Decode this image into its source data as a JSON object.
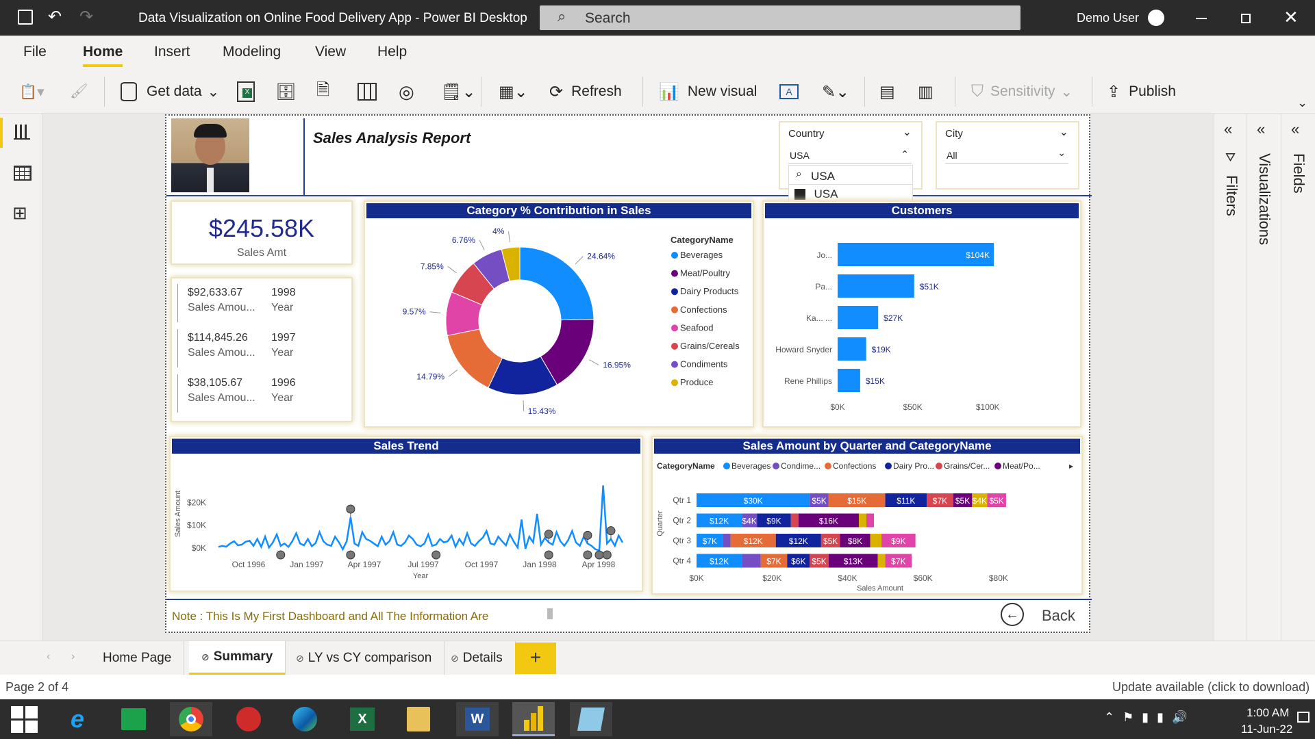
{
  "window": {
    "title": "Data Visualization on Online Food Delivery App - Power BI Desktop",
    "search_placeholder": "Search",
    "user": "Demo User"
  },
  "menu": [
    "File",
    "Home",
    "Insert",
    "Modeling",
    "View",
    "Help"
  ],
  "ribbon": {
    "get_data": "Get data",
    "refresh": "Refresh",
    "new_visual": "New visual",
    "sensitivity": "Sensitivity",
    "publish": "Publish"
  },
  "report": {
    "title": "Sales Analysis Report",
    "kpi": {
      "value": "$245.58K",
      "label": "Sales Amt"
    },
    "yearly": [
      {
        "amount": "$92,633.67",
        "amount_label": "Sales Amou...",
        "year": "1998",
        "year_label": "Year"
      },
      {
        "amount": "$114,845.26",
        "amount_label": "Sales Amou...",
        "year": "1997",
        "year_label": "Year"
      },
      {
        "amount": "$38,105.67",
        "amount_label": "Sales Amou...",
        "year": "1996",
        "year_label": "Year"
      }
    ],
    "country_slicer": {
      "label": "Country",
      "value": "USA",
      "search_value": "USA",
      "option": "USA"
    },
    "city_slicer": {
      "label": "City",
      "value": "All"
    },
    "note": "Note : This Is My First Dashboard and All The Information Are",
    "back": "Back"
  },
  "chart_data": [
    {
      "type": "pie",
      "title": "Category % Contribution in Sales",
      "legend_title": "CategoryName",
      "categories": [
        "Beverages",
        "Meat/Poultry",
        "Dairy Products",
        "Confections",
        "Seafood",
        "Grains/Cereals",
        "Condiments",
        "Produce"
      ],
      "values": [
        24.64,
        16.95,
        15.43,
        14.79,
        9.57,
        7.85,
        6.76,
        4.0
      ],
      "labels": [
        "24.64%",
        "16.95%",
        "15.43%",
        "14.79%",
        "9.57%",
        "7.85%",
        "6.76%",
        "4%"
      ],
      "colors": [
        "#118dff",
        "#6b007b",
        "#12239e",
        "#e66c37",
        "#e044a7",
        "#d64550",
        "#744ec2",
        "#d9b300"
      ]
    },
    {
      "type": "bar",
      "title": "Customers",
      "categories": [
        "Jo...",
        "Pa...",
        "Ka... ...",
        "Howard Snyder",
        "Rene Phillips"
      ],
      "values": [
        104,
        51,
        27,
        19,
        15
      ],
      "labels": [
        "$104K",
        "$51K",
        "$27K",
        "$19K",
        "$15K"
      ],
      "xticks": [
        "$0K",
        "$50K",
        "$100K"
      ],
      "xlim": [
        0,
        125
      ]
    },
    {
      "type": "line",
      "title": "Sales Trend",
      "xlabel": "Year",
      "ylabel": "Sales Amount",
      "xticks": [
        "Oct 1996",
        "Jan 1997",
        "Apr 1997",
        "Jul 1997",
        "Oct 1997",
        "Jan 1998",
        "Apr 1998"
      ],
      "yticks": [
        "$0K",
        "$10K",
        "$20K"
      ],
      "ylim": [
        0,
        30
      ],
      "values": [
        0.5,
        1,
        0.6,
        2,
        3,
        1.2,
        1.5,
        2.8,
        3.2,
        1,
        4,
        0.5,
        5,
        0.2,
        2.5,
        6,
        1,
        2,
        0.5,
        3,
        6.5,
        2,
        1.2,
        4,
        0.8,
        2.2,
        7,
        3,
        1.5,
        1,
        5,
        2.5,
        -0.5,
        3,
        13.5,
        2,
        1,
        7,
        4,
        3.2,
        2,
        0.8,
        5,
        1.5,
        3,
        7,
        1.5,
        1,
        2.5,
        5.5,
        4,
        1.5,
        0.8,
        2,
        6,
        1,
        1.5,
        4,
        2.5,
        3,
        5.5,
        0.6,
        4,
        1.5,
        6.5,
        2,
        1,
        3,
        4.5,
        7.5,
        2,
        1.5,
        5,
        3,
        1.2,
        6,
        2.8,
        0.2,
        12.5,
        -0.3,
        5,
        2.5,
        15,
        1.5,
        4.5,
        2.5,
        1.5,
        7,
        3,
        1,
        3.5,
        7.5,
        2.5,
        1,
        5,
        2,
        1,
        -0.5,
        -1,
        27.5,
        2,
        4,
        1,
        5.5,
        2.5
      ],
      "markers_high": [
        34,
        85,
        95,
        101
      ],
      "markers_low": [
        16,
        34,
        56,
        85,
        95,
        98,
        100
      ]
    },
    {
      "type": "bar",
      "title": "Sales Amount by Quarter and CategoryName",
      "legend_title": "CategoryName",
      "legend": [
        "Beverages",
        "Condime...",
        "Confections",
        "Dairy Pro...",
        "Grains/Cer...",
        "Meat/Po..."
      ],
      "ylabel": "Quarter",
      "xlabel": "Sales Amount",
      "xticks": [
        "$0K",
        "$20K",
        "$40K",
        "$60K",
        "$80K"
      ],
      "xlim": [
        0,
        90
      ],
      "categories": [
        "Qtr 1",
        "Qtr 2",
        "Qtr 3",
        "Qtr 4"
      ],
      "series": [
        {
          "name": "Beverages",
          "color": "#118dff",
          "values": [
            30,
            12,
            7,
            12
          ],
          "labels": [
            "$30K",
            "$12K",
            "$7K",
            "$12K"
          ]
        },
        {
          "name": "Condiments",
          "color": "#744ec2",
          "values": [
            5,
            4,
            2,
            5
          ],
          "labels": [
            "$5K",
            "$4K",
            "",
            ""
          ]
        },
        {
          "name": "Confections",
          "color": "#e66c37",
          "values": [
            15,
            0,
            12,
            7
          ],
          "labels": [
            "$15K",
            "",
            "$12K",
            "$7K"
          ]
        },
        {
          "name": "Dairy Products",
          "color": "#12239e",
          "values": [
            11,
            9,
            12,
            6
          ],
          "labels": [
            "$11K",
            "$9K",
            "$12K",
            "$6K"
          ]
        },
        {
          "name": "Grains/Cereals",
          "color": "#d64550",
          "values": [
            7,
            2,
            5,
            5
          ],
          "labels": [
            "$7K",
            "",
            "$5K",
            "$5K"
          ]
        },
        {
          "name": "Meat/Poultry",
          "color": "#6b007b",
          "values": [
            5,
            16,
            8,
            13
          ],
          "labels": [
            "$5K",
            "$16K",
            "$8K",
            "$13K"
          ]
        },
        {
          "name": "Produce",
          "color": "#d9b300",
          "values": [
            4,
            2,
            3,
            2
          ],
          "labels": [
            "$4K",
            "",
            "",
            ""
          ]
        },
        {
          "name": "Seafood",
          "color": "#e044a7",
          "values": [
            5,
            2,
            9,
            7
          ],
          "labels": [
            "$5K",
            "",
            "$9K",
            "$7K"
          ]
        }
      ]
    }
  ],
  "tabs": [
    "Home Page",
    "Summary",
    "LY vs CY comparison",
    "Details"
  ],
  "status": {
    "page": "Page 2 of 4",
    "update": "Update available (click to download)"
  },
  "clock": {
    "time": "1:00 AM",
    "date": "11-Jun-22"
  },
  "panes": {
    "filters": "Filters",
    "visualizations": "Visualizations",
    "fields": "Fields"
  }
}
